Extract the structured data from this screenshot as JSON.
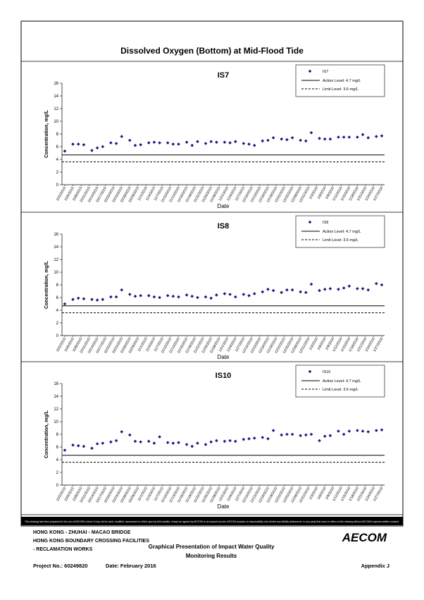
{
  "title": "Dissolved Oxygen (Bottom) at Mid-Flood Tide",
  "chart_data": [
    {
      "type": "scatter",
      "title": "IS7",
      "xlabel": "Date",
      "ylabel": "Concentration, mg/L",
      "x": [
        "10/2/2015",
        "10/5/2015",
        "10/7/2015",
        "10/9/2015",
        "10/12/2015",
        "10/14/2015",
        "10/16/2015",
        "10/19/2015",
        "10/21/2015",
        "10/23/2015",
        "10/26/2015",
        "10/28/2015",
        "10/30/2015",
        "11/2/2015",
        "11/4/2015",
        "11/6/2015",
        "11/9/2015",
        "11/11/2015",
        "11/13/2015",
        "11/16/2015",
        "11/18/2015",
        "11/20/2015",
        "11/23/2015",
        "11/25/2015",
        "11/27/2015",
        "11/30/2015",
        "12/2/2015",
        "12/4/2015",
        "12/7/2015",
        "12/9/2015",
        "12/11/2015",
        "12/14/2015",
        "12/16/2015",
        "12/18/2015",
        "12/21/2015",
        "12/23/2015",
        "12/25/2015",
        "12/28/2015",
        "12/30/2015",
        "1/1/2016",
        "1/4/2016",
        "1/6/2016",
        "1/8/2016",
        "1/11/2016",
        "1/13/2016",
        "1/15/2016",
        "1/18/2016",
        "1/20/2016",
        "1/22/2016",
        "1/25/2016",
        "1/27/2016"
      ],
      "series": [
        {
          "name": "IS7",
          "color": "#1a1a80",
          "values": [
            5.3,
            6.4,
            6.4,
            6.3,
            5.4,
            5.8,
            6.0,
            6.6,
            6.5,
            7.6,
            7.0,
            6.2,
            6.3,
            6.6,
            6.7,
            6.6,
            6.6,
            6.4,
            6.4,
            6.7,
            6.2,
            6.8,
            6.5,
            6.8,
            6.7,
            6.7,
            6.6,
            6.8,
            6.5,
            6.4,
            6.2,
            6.9,
            7.0,
            7.4,
            7.2,
            7.1,
            7.4,
            7.0,
            6.9,
            8.2,
            7.3,
            7.2,
            7.2,
            7.5,
            7.5,
            7.5,
            7.5,
            7.9,
            7.4,
            7.6,
            7.7
          ]
        }
      ],
      "reference_lines": [
        {
          "name": "Action Level: 4.7 mg/L",
          "value": 4.7,
          "style": "solid"
        },
        {
          "name": "Limit Level: 3.6 mg/L",
          "value": 3.6,
          "style": "dashed"
        }
      ],
      "ylim": [
        0,
        16
      ],
      "yticks": [
        0,
        2,
        4,
        6,
        8,
        10,
        12,
        14,
        16
      ],
      "xlim": [
        "10/2/2015",
        "1/27/2016"
      ],
      "xticks": [
        "10/2/2015",
        "10/5/2015",
        "10/8/2015",
        "10/11/2015",
        "10/14/2015",
        "10/17/2015",
        "10/20/2015",
        "10/23/2015",
        "10/26/2015",
        "10/29/2015",
        "11/1/2015",
        "11/4/2015",
        "11/7/2015",
        "11/10/2015",
        "11/13/2015",
        "11/16/2015",
        "11/19/2015",
        "11/22/2015",
        "11/25/2015",
        "11/28/2015",
        "12/1/2015",
        "12/4/2015",
        "12/7/2015",
        "12/10/2015",
        "12/13/2015",
        "12/16/2015",
        "12/19/2015",
        "12/22/2015",
        "12/25/2015",
        "12/28/2015",
        "12/31/2015",
        "1/3/2016",
        "1/6/2016",
        "1/9/2016",
        "1/12/2016",
        "1/15/2016",
        "1/18/2016",
        "1/21/2016",
        "1/24/2016",
        "1/27/2016"
      ],
      "legend": "upper right",
      "grid": false
    },
    {
      "type": "scatter",
      "title": "IS8",
      "xlabel": "Date",
      "ylabel": "Concentration, mg/L",
      "x": [
        "10/2/2015",
        "10/5/2015",
        "10/7/2015",
        "10/9/2015",
        "10/12/2015",
        "10/14/2015",
        "10/16/2015",
        "10/19/2015",
        "10/21/2015",
        "10/23/2015",
        "10/26/2015",
        "10/28/2015",
        "10/30/2015",
        "11/2/2015",
        "11/4/2015",
        "11/6/2015",
        "11/9/2015",
        "11/11/2015",
        "11/13/2015",
        "11/16/2015",
        "11/18/2015",
        "11/20/2015",
        "11/23/2015",
        "11/25/2015",
        "11/27/2015",
        "11/30/2015",
        "12/2/2015",
        "12/4/2015",
        "12/7/2015",
        "12/9/2015",
        "12/11/2015",
        "12/14/2015",
        "12/16/2015",
        "12/18/2015",
        "12/21/2015",
        "12/23/2015",
        "12/25/2015",
        "12/28/2015",
        "12/30/2015",
        "1/1/2016",
        "1/4/2016",
        "1/6/2016",
        "1/8/2016",
        "1/11/2016",
        "1/13/2016",
        "1/15/2016",
        "1/18/2016",
        "1/20/2016",
        "1/22/2016",
        "1/25/2016",
        "1/27/2016"
      ],
      "series": [
        {
          "name": "IS8",
          "color": "#1a1a80",
          "values": [
            5.0,
            5.7,
            5.9,
            5.8,
            5.7,
            5.6,
            5.7,
            6.1,
            6.1,
            7.2,
            6.5,
            6.2,
            6.3,
            6.3,
            6.1,
            6.0,
            6.3,
            6.2,
            6.1,
            6.4,
            6.2,
            6.0,
            6.1,
            5.9,
            6.4,
            6.6,
            6.5,
            6.1,
            6.5,
            6.3,
            6.6,
            6.9,
            7.3,
            7.1,
            6.8,
            7.2,
            7.2,
            6.9,
            6.8,
            8.1,
            7.1,
            7.3,
            7.4,
            7.3,
            7.5,
            7.8,
            7.4,
            7.4,
            7.2,
            8.2,
            8.0
          ]
        }
      ],
      "reference_lines": [
        {
          "name": "Action Level: 4.7 mg/L",
          "value": 4.7,
          "style": "solid"
        },
        {
          "name": "Limit Level: 3.6 mg/L",
          "value": 3.6,
          "style": "dashed"
        }
      ],
      "ylim": [
        0,
        16
      ],
      "yticks": [
        0,
        2,
        4,
        6,
        8,
        10,
        12,
        14,
        16
      ],
      "xlim": [
        "10/2/2015",
        "1/27/2016"
      ],
      "xticks": [
        "10/2/2015",
        "10/5/2015",
        "10/8/2015",
        "10/11/2015",
        "10/14/2015",
        "10/17/2015",
        "10/20/2015",
        "10/23/2015",
        "10/26/2015",
        "10/29/2015",
        "11/1/2015",
        "11/4/2015",
        "11/7/2015",
        "11/10/2015",
        "11/13/2015",
        "11/16/2015",
        "11/19/2015",
        "11/22/2015",
        "11/25/2015",
        "11/28/2015",
        "12/1/2015",
        "12/4/2015",
        "12/7/2015",
        "12/10/2015",
        "12/13/2015",
        "12/16/2015",
        "12/19/2015",
        "12/22/2015",
        "12/25/2015",
        "12/28/2015",
        "12/31/2015",
        "1/3/2016",
        "1/6/2016",
        "1/9/2016",
        "1/12/2016",
        "1/15/2016",
        "1/18/2016",
        "1/21/2016",
        "1/24/2016",
        "1/27/2016"
      ],
      "legend": "upper right",
      "grid": false
    },
    {
      "type": "scatter",
      "title": "IS10",
      "xlabel": "Date",
      "ylabel": "Concentration, mg/L",
      "x": [
        "10/2/2015",
        "10/5/2015",
        "10/7/2015",
        "10/9/2015",
        "10/12/2015",
        "10/14/2015",
        "10/16/2015",
        "10/19/2015",
        "10/21/2015",
        "10/23/2015",
        "10/26/2015",
        "10/28/2015",
        "10/30/2015",
        "11/2/2015",
        "11/4/2015",
        "11/6/2015",
        "11/9/2015",
        "11/11/2015",
        "11/13/2015",
        "11/16/2015",
        "11/18/2015",
        "11/20/2015",
        "11/23/2015",
        "11/25/2015",
        "11/27/2015",
        "11/30/2015",
        "12/2/2015",
        "12/4/2015",
        "12/7/2015",
        "12/9/2015",
        "12/11/2015",
        "12/14/2015",
        "12/16/2015",
        "12/18/2015",
        "12/21/2015",
        "12/23/2015",
        "12/25/2015",
        "12/28/2015",
        "12/30/2015",
        "1/1/2016",
        "1/4/2016",
        "1/6/2016",
        "1/8/2016",
        "1/11/2016",
        "1/13/2016",
        "1/15/2016",
        "1/18/2016",
        "1/20/2016",
        "1/22/2016",
        "1/25/2016",
        "1/27/2016"
      ],
      "series": [
        {
          "name": "IS10",
          "color": "#1a1a80",
          "values": [
            5.5,
            6.3,
            6.2,
            6.1,
            5.8,
            6.5,
            6.6,
            6.8,
            7.0,
            8.4,
            7.9,
            6.9,
            6.8,
            6.9,
            6.6,
            7.6,
            6.7,
            6.6,
            6.7,
            6.4,
            6.1,
            6.6,
            6.4,
            6.8,
            7.0,
            6.9,
            7.0,
            6.9,
            7.2,
            7.3,
            7.4,
            7.5,
            7.3,
            8.6,
            7.9,
            8.0,
            8.0,
            7.8,
            7.9,
            8.0,
            7.0,
            7.7,
            7.8,
            8.5,
            8.0,
            8.5,
            8.6,
            8.5,
            8.4,
            8.6,
            8.7
          ]
        }
      ],
      "reference_lines": [
        {
          "name": "Action Level: 4.7 mg/L",
          "value": 4.7,
          "style": "solid"
        },
        {
          "name": "Limit Level: 3.6 mg/L",
          "value": 3.6,
          "style": "dashed"
        }
      ],
      "ylim": [
        0,
        16
      ],
      "yticks": [
        0,
        2,
        4,
        6,
        8,
        10,
        12,
        14,
        16
      ],
      "xlim": [
        "10/2/2015",
        "1/27/2016"
      ],
      "xticks": [
        "10/2/2015",
        "10/5/2015",
        "10/8/2015",
        "10/11/2015",
        "10/14/2015",
        "10/17/2015",
        "10/20/2015",
        "10/23/2015",
        "10/26/2015",
        "10/29/2015",
        "11/1/2015",
        "11/4/2015",
        "11/7/2015",
        "11/10/2015",
        "11/13/2015",
        "11/16/2015",
        "11/19/2015",
        "11/22/2015",
        "11/25/2015",
        "11/28/2015",
        "12/1/2015",
        "12/4/2015",
        "12/7/2015",
        "12/10/2015",
        "12/13/2015",
        "12/16/2015",
        "12/19/2015",
        "12/22/2015",
        "12/25/2015",
        "12/28/2015",
        "12/31/2015",
        "1/3/2016",
        "1/6/2016",
        "1/9/2016",
        "1/12/2016",
        "1/15/2016",
        "1/18/2016",
        "1/21/2016",
        "1/24/2016",
        "1/27/2016"
      ],
      "legend": "upper right",
      "grid": false
    }
  ],
  "footer": {
    "disclaimer": "This drawing has been prepared for the use of AECOM's client. It may not be used, modified, reproduced or relied upon by third parties, except as agreed by AECOM or as required by law. AECOM accepts no responsibility, and denies any liability whatsoever, to any party that uses or relies on this drawing without AECOM's express written consent.",
    "project_lines": [
      "HONG KONG - ZHUHAI - MACAO BRIDGE",
      "HONG KONG BOUNDARY CROSSING FACILITIES",
      "- RECLAMATION WORKS"
    ],
    "logo": "AECOM",
    "drawing_title": [
      "Graphical Presentation of Impact Water Quality",
      "Monitoring Results"
    ],
    "project_no": "Project No.: 60249820",
    "date": "Date: February 2016",
    "appendix": "Appendix J"
  }
}
